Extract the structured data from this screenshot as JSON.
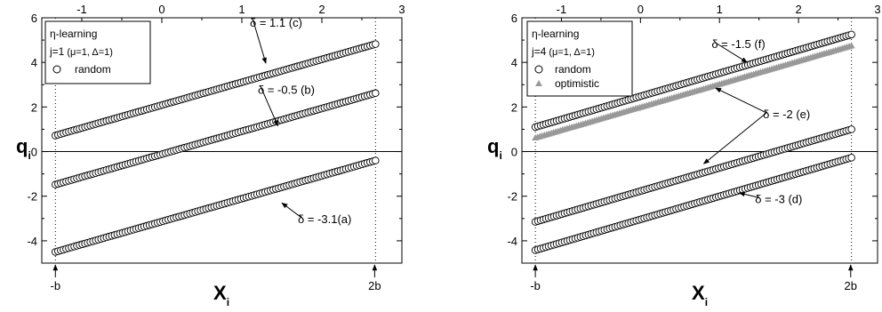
{
  "chart_data": [
    {
      "type": "scatter",
      "panel": "left",
      "x_bottom_ticks": [
        "-b",
        "2b"
      ],
      "x_top_ticks": [
        "-1",
        "0",
        "1",
        "2",
        "3"
      ],
      "y_ticks": [
        "-4",
        "-2",
        "0",
        "2",
        "4",
        "6"
      ],
      "xlabel_main": "X",
      "xlabel_sub": "i",
      "ylabel_main": "q",
      "ylabel_sub": "i",
      "xlim": [
        -1.5,
        3.0
      ],
      "ylim": [
        -5,
        6
      ],
      "b": 1.33,
      "grid": false,
      "legend_position": "top-left",
      "legend": {
        "line1": "η-learning",
        "line2": "j=1",
        "line2_params": "(μ=1, Δ=1)",
        "entries": [
          {
            "label": "random",
            "marker": "circle"
          }
        ]
      },
      "series": [
        {
          "label": "δ = 1.1 (c)",
          "marker": "circle",
          "color": "#000000",
          "x_range": [
            -1.33,
            2.67
          ],
          "y_range": [
            0.72,
            4.82
          ],
          "n_points": 120
        },
        {
          "label": "δ = -0.5 (b)",
          "marker": "circle",
          "color": "#000000",
          "x_range": [
            -1.33,
            2.67
          ],
          "y_range": [
            -1.48,
            2.62
          ],
          "n_points": 120
        },
        {
          "label": "δ = -3.1(a)",
          "marker": "circle",
          "color": "#000000",
          "x_range": [
            -1.33,
            2.67
          ],
          "y_range": [
            -4.5,
            -0.4
          ],
          "n_points": 120
        }
      ],
      "annotations": [
        {
          "text": "δ = 1.1 (c)",
          "x": 1.1,
          "y": 5.6,
          "ax": 1.3,
          "ay": 3.96
        },
        {
          "text": "δ = -0.5 (b)",
          "x": 1.2,
          "y": 2.6,
          "ax": 1.45,
          "ay": 1.15
        },
        {
          "text": "δ = -3.1(a)",
          "x": 1.7,
          "y": -3.2,
          "ax": 1.5,
          "ay": -2.3
        }
      ],
      "reference_lines": {
        "horizontal_y": 0,
        "vertical_dotted_x": [
          -1.33,
          2.67
        ]
      }
    },
    {
      "type": "scatter",
      "panel": "right",
      "x_bottom_ticks": [
        "-b",
        "2b"
      ],
      "x_top_ticks": [
        "-1",
        "0",
        "1",
        "2",
        "3"
      ],
      "y_ticks": [
        "-4",
        "-2",
        "0",
        "2",
        "4",
        "6"
      ],
      "xlabel_main": "X",
      "xlabel_sub": "i",
      "ylabel_main": "q",
      "ylabel_sub": "i",
      "xlim": [
        -1.5,
        3.0
      ],
      "ylim": [
        -5,
        6
      ],
      "b": 1.33,
      "grid": false,
      "legend_position": "top-left",
      "legend": {
        "line1": "η-learning",
        "line2": "j=4",
        "line2_params": "(μ=1, Δ=1)",
        "entries": [
          {
            "label": "random",
            "marker": "circle"
          },
          {
            "label": "optimistic",
            "marker": "triangle"
          }
        ]
      },
      "series": [
        {
          "label": "δ = -1.5 (f) random",
          "marker": "circle",
          "color": "#000000",
          "x_range": [
            -1.33,
            2.67
          ],
          "y_range": [
            1.1,
            5.25
          ],
          "n_points": 120
        },
        {
          "label": "δ = -1.5 (f) optimistic",
          "marker": "triangle",
          "color": "#999999",
          "x_range": [
            -1.33,
            2.67
          ],
          "y_range": [
            0.62,
            4.75
          ],
          "n_points": 140
        },
        {
          "label": "δ = -2 (e)",
          "marker": "circle",
          "color": "#000000",
          "x_range": [
            -1.33,
            2.67
          ],
          "y_range": [
            -3.15,
            1.0
          ],
          "n_points": 120
        },
        {
          "label": "δ = -3 (d)",
          "marker": "circle",
          "color": "#000000",
          "x_range": [
            -1.33,
            2.67
          ],
          "y_range": [
            -4.42,
            -0.27
          ],
          "n_points": 120
        }
      ],
      "annotations": [
        {
          "text": "δ = -1.5 (f)",
          "x": 0.9,
          "y": 4.65,
          "ax": 1.35,
          "ay": 4.0
        },
        {
          "text": "δ = -2 (e)",
          "x": 1.55,
          "y": 1.5,
          "ax": 0.95,
          "ay": 2.85,
          "ax2": 0.8,
          "ay2": -0.55
        },
        {
          "text": "δ = -3 (d)",
          "x": 1.45,
          "y": -2.3,
          "ax": 1.25,
          "ay": -1.85
        }
      ],
      "reference_lines": {
        "horizontal_y": 0,
        "vertical_dotted_x": [
          -1.33,
          2.67
        ]
      }
    }
  ]
}
